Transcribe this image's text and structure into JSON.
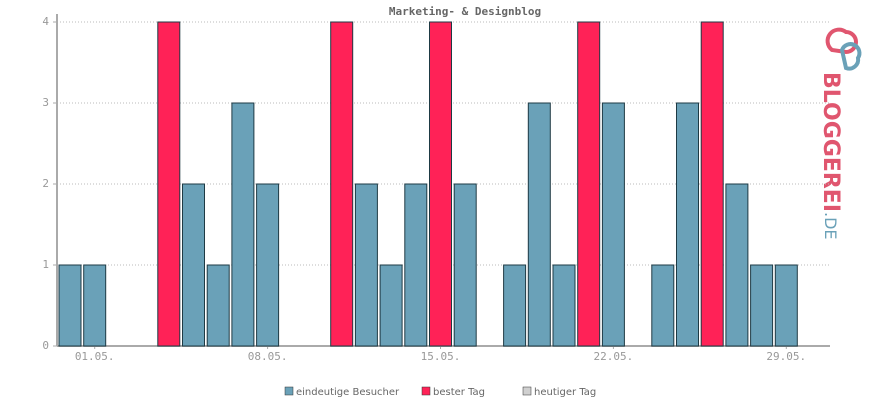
{
  "chart_data": {
    "type": "bar",
    "title": "Marketing- & Designblog",
    "categories": [
      null,
      "01.05.",
      null,
      null,
      null,
      null,
      null,
      null,
      "08.05.",
      null,
      null,
      null,
      null,
      null,
      null,
      "15.05.",
      null,
      null,
      null,
      null,
      null,
      null,
      "22.05.",
      null,
      null,
      null,
      null,
      null,
      null,
      "29.05."
    ],
    "series": [
      {
        "name": "eindeutige Besucher",
        "color": "#6aa1b8",
        "values": [
          1,
          1,
          0,
          0,
          null,
          2,
          1,
          3,
          2,
          0,
          0,
          null,
          2,
          1,
          2,
          null,
          2,
          0,
          1,
          3,
          1,
          null,
          3,
          0,
          1,
          3,
          null,
          2,
          1,
          1
        ]
      },
      {
        "name": "bester Tag",
        "color": "#ff2257",
        "values": [
          null,
          null,
          null,
          null,
          4,
          null,
          null,
          null,
          null,
          null,
          null,
          4,
          null,
          null,
          null,
          4,
          null,
          null,
          null,
          null,
          null,
          4,
          null,
          null,
          null,
          null,
          4,
          null,
          null,
          null
        ]
      },
      {
        "name": "heutiger Tag",
        "color": "#d0d0d0",
        "values": [
          null,
          null,
          null,
          null,
          null,
          null,
          null,
          null,
          null,
          null,
          null,
          null,
          null,
          null,
          null,
          null,
          null,
          null,
          null,
          null,
          null,
          null,
          null,
          null,
          null,
          null,
          null,
          null,
          null,
          null
        ]
      }
    ],
    "ylim": [
      0,
      4
    ],
    "yticks": [
      0,
      1,
      2,
      3,
      4
    ],
    "grid": true,
    "logo": {
      "main": "BLOGGEREI",
      "suffix": ".DE"
    }
  }
}
